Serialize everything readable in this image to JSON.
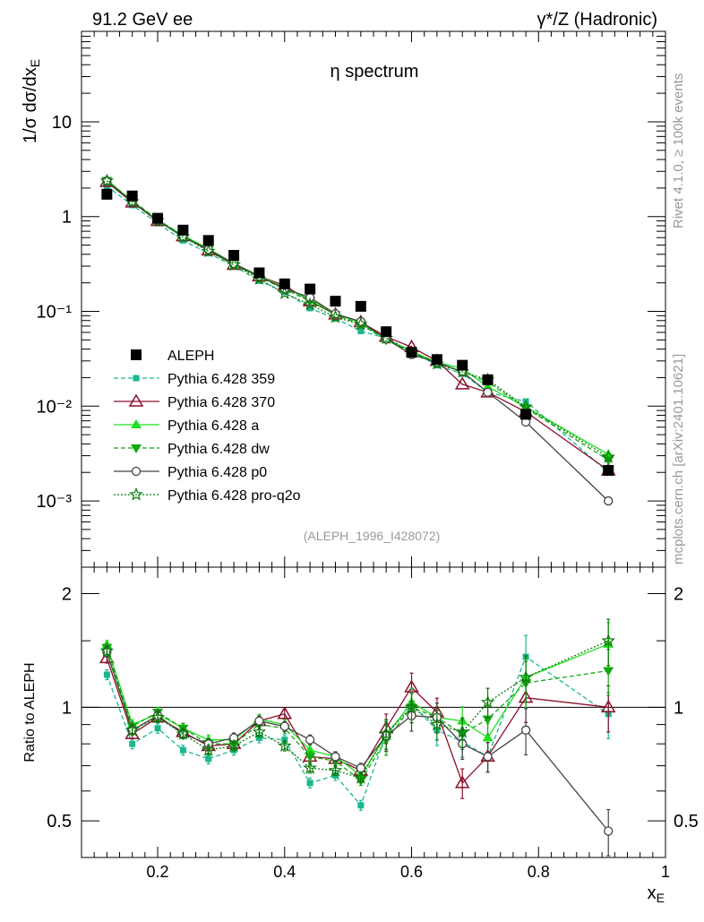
{
  "header": {
    "left_title": "91.2 GeV ee",
    "right_title": "γ*/Z (Hadronic)"
  },
  "side_labels": {
    "rivet": "Rivet 4.1.0, ≥ 100k events",
    "mcplots": "mcplots.cern.ch [arXiv:2401.10621]"
  },
  "colors": {
    "aleph": "#000000",
    "p359": "#1ab88f",
    "p370": "#8b0f2a",
    "a": "#1ee01e",
    "dw": "#13a813",
    "p0": "#444444",
    "proq2o": "#0b7a0b"
  },
  "chart_data": [
    {
      "type": "scatter",
      "title": "η spectrum",
      "xlabel": "x_E",
      "ylabel": "1/σ  dσ/dx_E",
      "yscale": "log",
      "xlim": [
        0.08,
        1.0
      ],
      "ylim": [
        0.0002,
        90
      ],
      "ytick_labels": [
        "10⁻³",
        "10⁻²",
        "10⁻¹",
        "1",
        "10"
      ],
      "analysis_label": "(ALEPH_1996_I428072)",
      "legend_position": "lower-left",
      "x": [
        0.12,
        0.16,
        0.2,
        0.24,
        0.28,
        0.32,
        0.36,
        0.4,
        0.44,
        0.48,
        0.52,
        0.56,
        0.6,
        0.64,
        0.68,
        0.72,
        0.78,
        0.91
      ],
      "series": [
        {
          "key": "aleph",
          "name": "ALEPH",
          "marker": "square",
          "line": "none",
          "values": [
            1.72,
            1.65,
            0.96,
            0.72,
            0.56,
            0.39,
            0.255,
            0.195,
            0.172,
            0.128,
            0.113,
            0.061,
            0.037,
            0.031,
            0.027,
            0.019,
            0.0082,
            0.0021
          ]
        },
        {
          "key": "p359",
          "name": "Pythia 6.428 359",
          "marker": "smallsquare",
          "line": "dashed",
          "values": [
            2.1,
            1.32,
            0.85,
            0.56,
            0.41,
            0.3,
            0.21,
            0.16,
            0.108,
            0.084,
            0.062,
            0.052,
            0.038,
            0.027,
            0.022,
            0.014,
            0.0112,
            0.002
          ]
        },
        {
          "key": "p370",
          "name": "Pythia 6.428 370",
          "marker": "open-triangle",
          "line": "solid",
          "values": [
            2.32,
            1.41,
            0.9,
            0.62,
            0.44,
            0.31,
            0.235,
            0.187,
            0.128,
            0.093,
            0.077,
            0.054,
            0.042,
            0.03,
            0.017,
            0.014,
            0.0087,
            0.0021
          ]
        },
        {
          "key": "a",
          "name": "Pythia 6.428 a",
          "marker": "triangle",
          "line": "solid",
          "values": [
            2.45,
            1.45,
            0.92,
            0.63,
            0.46,
            0.32,
            0.238,
            0.178,
            0.133,
            0.095,
            0.075,
            0.051,
            0.038,
            0.029,
            0.025,
            0.016,
            0.0098,
            0.0031
          ]
        },
        {
          "key": "dw",
          "name": "Pythia 6.428 dw",
          "marker": "down-triangle",
          "line": "dashed",
          "values": [
            2.4,
            1.47,
            0.93,
            0.63,
            0.45,
            0.31,
            0.23,
            0.172,
            0.128,
            0.092,
            0.073,
            0.05,
            0.037,
            0.029,
            0.023,
            0.018,
            0.0095,
            0.0027
          ]
        },
        {
          "key": "p0",
          "name": "Pythia 6.428 p0",
          "marker": "open-circle",
          "line": "solid",
          "values": [
            2.38,
            1.43,
            0.91,
            0.61,
            0.45,
            0.32,
            0.235,
            0.173,
            0.14,
            0.094,
            0.078,
            0.051,
            0.035,
            0.029,
            0.023,
            0.014,
            0.0068,
            0.001
          ]
        },
        {
          "key": "proq2o",
          "name": "Pythia 6.428 pro-q2o",
          "marker": "open-star",
          "line": "dotted",
          "values": [
            2.38,
            1.44,
            0.91,
            0.61,
            0.43,
            0.31,
            0.22,
            0.155,
            0.118,
            0.087,
            0.073,
            0.052,
            0.037,
            0.028,
            0.023,
            0.019,
            0.0098,
            0.0029
          ]
        }
      ]
    },
    {
      "type": "line",
      "title": "",
      "xlabel": "x_E",
      "ylabel": "Ratio to ALEPH",
      "yscale": "log",
      "xlim": [
        0.08,
        1.0
      ],
      "ylim": [
        0.4,
        2.35
      ],
      "xtick_labels": [
        "0.2",
        "0.4",
        "0.6",
        "0.8",
        "1"
      ],
      "ytick_labels": [
        "0.5",
        "1",
        "2"
      ],
      "reference_line": 1,
      "x": [
        0.12,
        0.16,
        0.2,
        0.24,
        0.28,
        0.32,
        0.36,
        0.4,
        0.44,
        0.48,
        0.52,
        0.56,
        0.6,
        0.64,
        0.68,
        0.72,
        0.78,
        0.91
      ],
      "series": [
        {
          "key": "p359",
          "name": "Pythia 6.428 359",
          "values": [
            1.22,
            0.8,
            0.88,
            0.77,
            0.73,
            0.77,
            0.83,
            0.82,
            0.63,
            0.66,
            0.55,
            0.85,
            1.02,
            0.87,
            0.81,
            0.74,
            1.36,
            0.96
          ]
        },
        {
          "key": "p370",
          "name": "Pythia 6.428 370",
          "values": [
            1.35,
            0.85,
            0.94,
            0.86,
            0.79,
            0.8,
            0.92,
            0.96,
            0.74,
            0.73,
            0.68,
            0.88,
            1.13,
            0.97,
            0.63,
            0.74,
            1.06,
            1.0
          ]
        },
        {
          "key": "a",
          "name": "Pythia 6.428 a",
          "values": [
            1.46,
            0.9,
            0.96,
            0.88,
            0.82,
            0.82,
            0.93,
            0.9,
            0.77,
            0.74,
            0.66,
            0.84,
            1.03,
            0.94,
            0.92,
            0.83,
            1.2,
            1.47
          ]
        },
        {
          "key": "dw",
          "name": "Pythia 6.428 dw",
          "values": [
            1.44,
            0.89,
            0.97,
            0.88,
            0.8,
            0.8,
            0.9,
            0.88,
            0.74,
            0.72,
            0.64,
            0.82,
            1.0,
            0.94,
            0.85,
            0.93,
            1.16,
            1.25
          ]
        },
        {
          "key": "p0",
          "name": "Pythia 6.428 p0",
          "values": [
            1.4,
            0.87,
            0.95,
            0.85,
            0.8,
            0.83,
            0.92,
            0.89,
            0.82,
            0.74,
            0.69,
            0.84,
            0.95,
            0.94,
            0.8,
            0.74,
            0.87,
            0.47
          ]
        },
        {
          "key": "proq2o",
          "name": "Pythia 6.428 pro-q2o",
          "values": [
            1.41,
            0.87,
            0.94,
            0.85,
            0.77,
            0.79,
            0.86,
            0.79,
            0.69,
            0.68,
            0.65,
            0.85,
            1.0,
            0.9,
            0.86,
            1.03,
            1.2,
            1.5
          ]
        }
      ]
    }
  ]
}
